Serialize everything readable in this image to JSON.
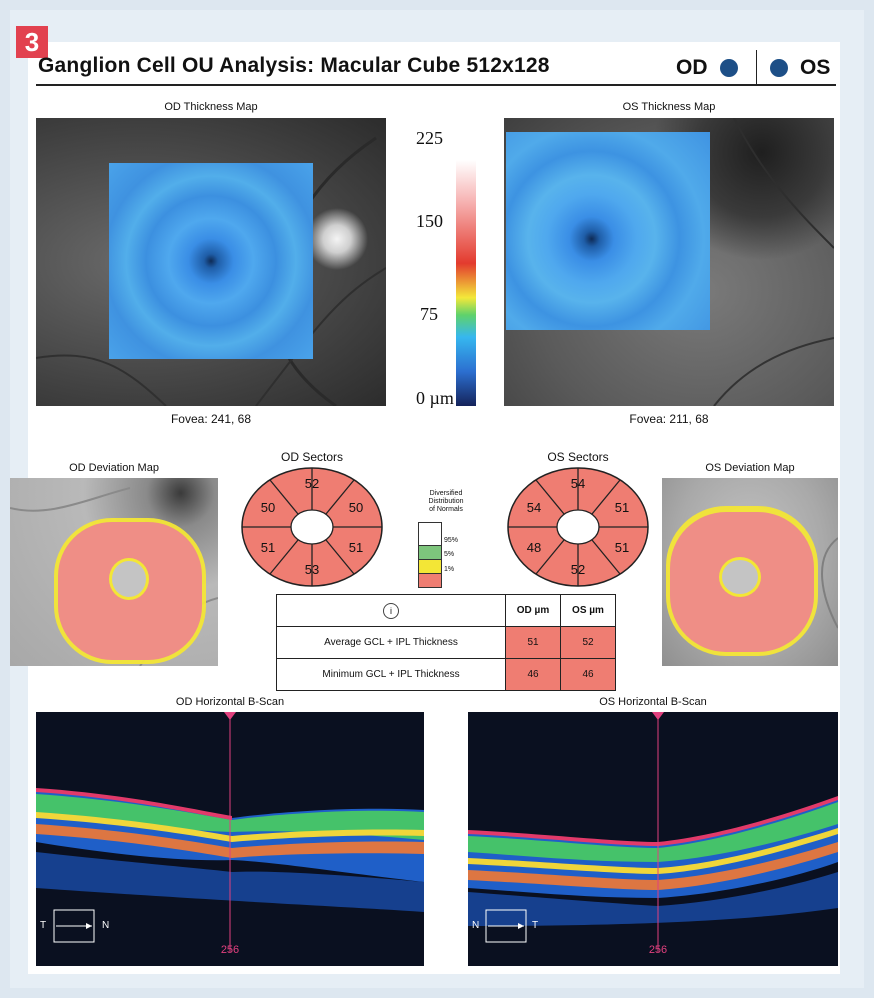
{
  "figure_label": "3",
  "title": "Ganglion Cell OU Analysis: Macular Cube 512x128",
  "eyes": {
    "od": "OD",
    "os": "OS"
  },
  "od_map": {
    "title": "OD Thickness Map",
    "fovea": "Fovea: 241, 68"
  },
  "os_map": {
    "title": "OS Thickness Map",
    "fovea": "Fovea: 211, 68"
  },
  "scale": {
    "labels": [
      "225",
      "150",
      "75",
      "0 µm"
    ]
  },
  "od_deviation": {
    "title": "OD Deviation Map"
  },
  "os_deviation": {
    "title": "OS Deviation Map"
  },
  "od_sectors": {
    "title": "OD Sectors",
    "values": [
      "52",
      "50",
      "51",
      "53",
      "51",
      "50"
    ]
  },
  "os_sectors": {
    "title": "OS Sectors",
    "values": [
      "54",
      "51",
      "51",
      "52",
      "48",
      "54"
    ]
  },
  "legend": {
    "title_lines": [
      "Diversified",
      "Distribution",
      "of Normals"
    ],
    "items": [
      {
        "label": "95%",
        "color": "#ffffff"
      },
      {
        "label": "5%",
        "color": "#7dc57c"
      },
      {
        "label": "1%",
        "color": "#f3e636"
      },
      {
        "label": "",
        "color": "#ef7d72"
      }
    ]
  },
  "table": {
    "icon": "i",
    "headers": [
      "OD µm",
      "OS µm"
    ],
    "rows": [
      {
        "label": "Average GCL + IPL Thickness",
        "od": "51",
        "os": "52"
      },
      {
        "label": "Minimum GCL + IPL Thickness",
        "od": "46",
        "os": "46"
      }
    ]
  },
  "od_bscan": {
    "title": "OD Horizontal B-Scan",
    "position": "256",
    "orient_left": "T",
    "orient_right": "N"
  },
  "os_bscan": {
    "title": "OS Horizontal B-Scan",
    "position": "256",
    "orient_left": "N",
    "orient_right": "T"
  },
  "colors": {
    "abnormal": "#ef7d72",
    "borderline": "#f3e636",
    "normal": "#7dc57c",
    "accent": "#e2414f",
    "eye_dot": "#1d4f87"
  }
}
